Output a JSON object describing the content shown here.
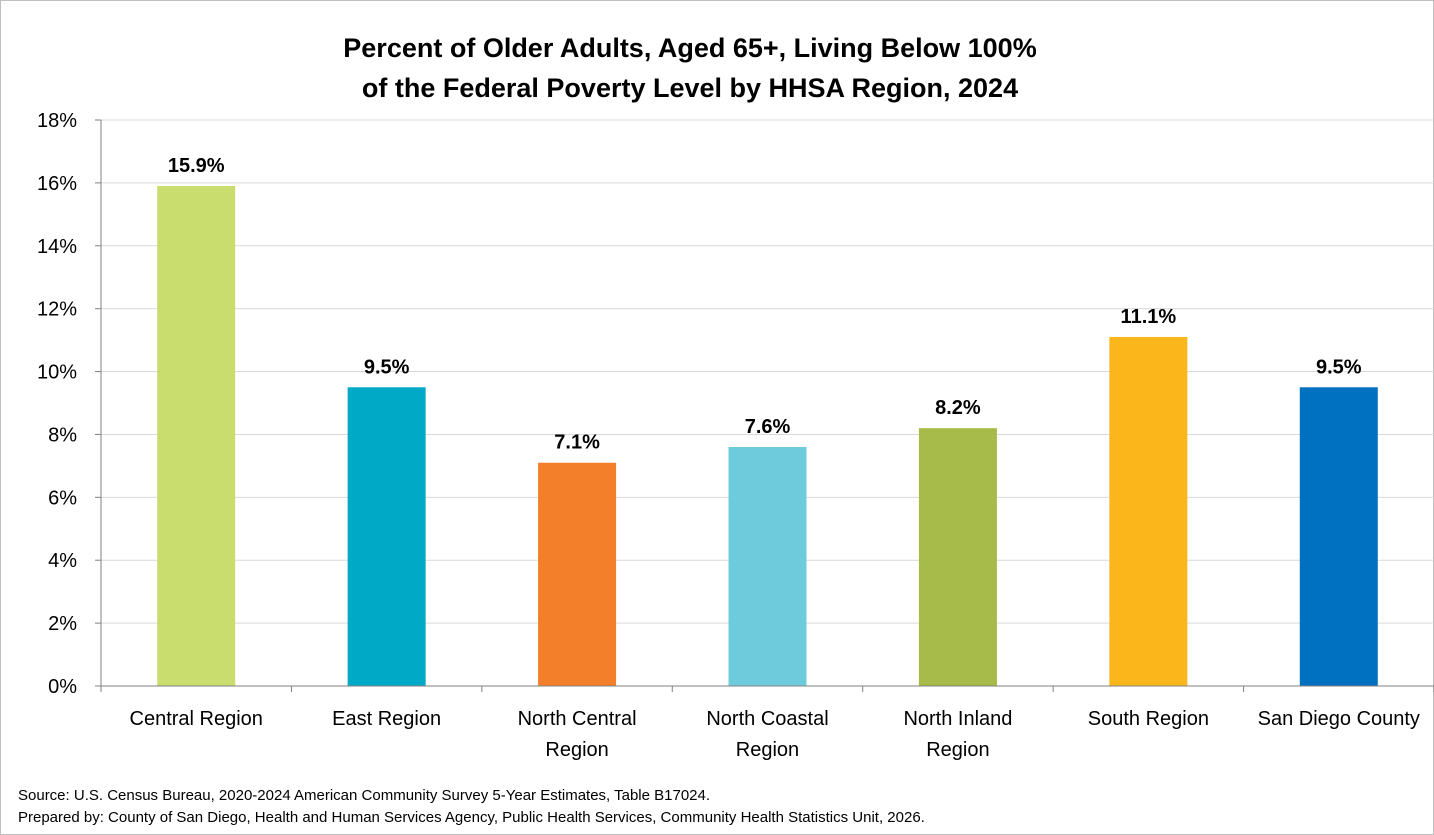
{
  "chart_data": {
    "type": "bar",
    "title_lines": [
      "Percent of Older Adults, Aged 65+, Living Below 100%",
      "of the Federal Poverty Level by HHSA Region, 2024"
    ],
    "categories": [
      [
        "Central Region"
      ],
      [
        "East Region"
      ],
      [
        "North Central",
        "Region"
      ],
      [
        "North Coastal",
        "Region"
      ],
      [
        "North Inland",
        "Region"
      ],
      [
        "South Region"
      ],
      [
        "San Diego County"
      ]
    ],
    "values": [
      15.9,
      9.5,
      7.1,
      7.6,
      8.2,
      11.1,
      9.5
    ],
    "data_labels": [
      "15.9%",
      "9.5%",
      "7.1%",
      "7.6%",
      "8.2%",
      "11.1%",
      "9.5%"
    ],
    "colors": [
      "#c9dd6e",
      "#00a9c6",
      "#f47f2a",
      "#6ecbdc",
      "#a6bb4a",
      "#fbb61b",
      "#0070c0"
    ],
    "ylim": [
      0,
      18
    ],
    "yticks": [
      0,
      2,
      4,
      6,
      8,
      10,
      12,
      14,
      16,
      18
    ],
    "ytick_labels": [
      "0%",
      "2%",
      "4%",
      "6%",
      "8%",
      "10%",
      "12%",
      "14%",
      "16%",
      "18%"
    ],
    "grid": true,
    "gridline_color": "#d9d9d9",
    "axis_color": "#808080"
  },
  "footer": {
    "source": "Source: U.S. Census Bureau, 2020-2024 American Community Survey 5-Year Estimates, Table B17024.",
    "prepared_by": "Prepared by: County of San Diego, Health and Human Services Agency, Public Health Services, Community Health Statistics Unit, 2026."
  }
}
